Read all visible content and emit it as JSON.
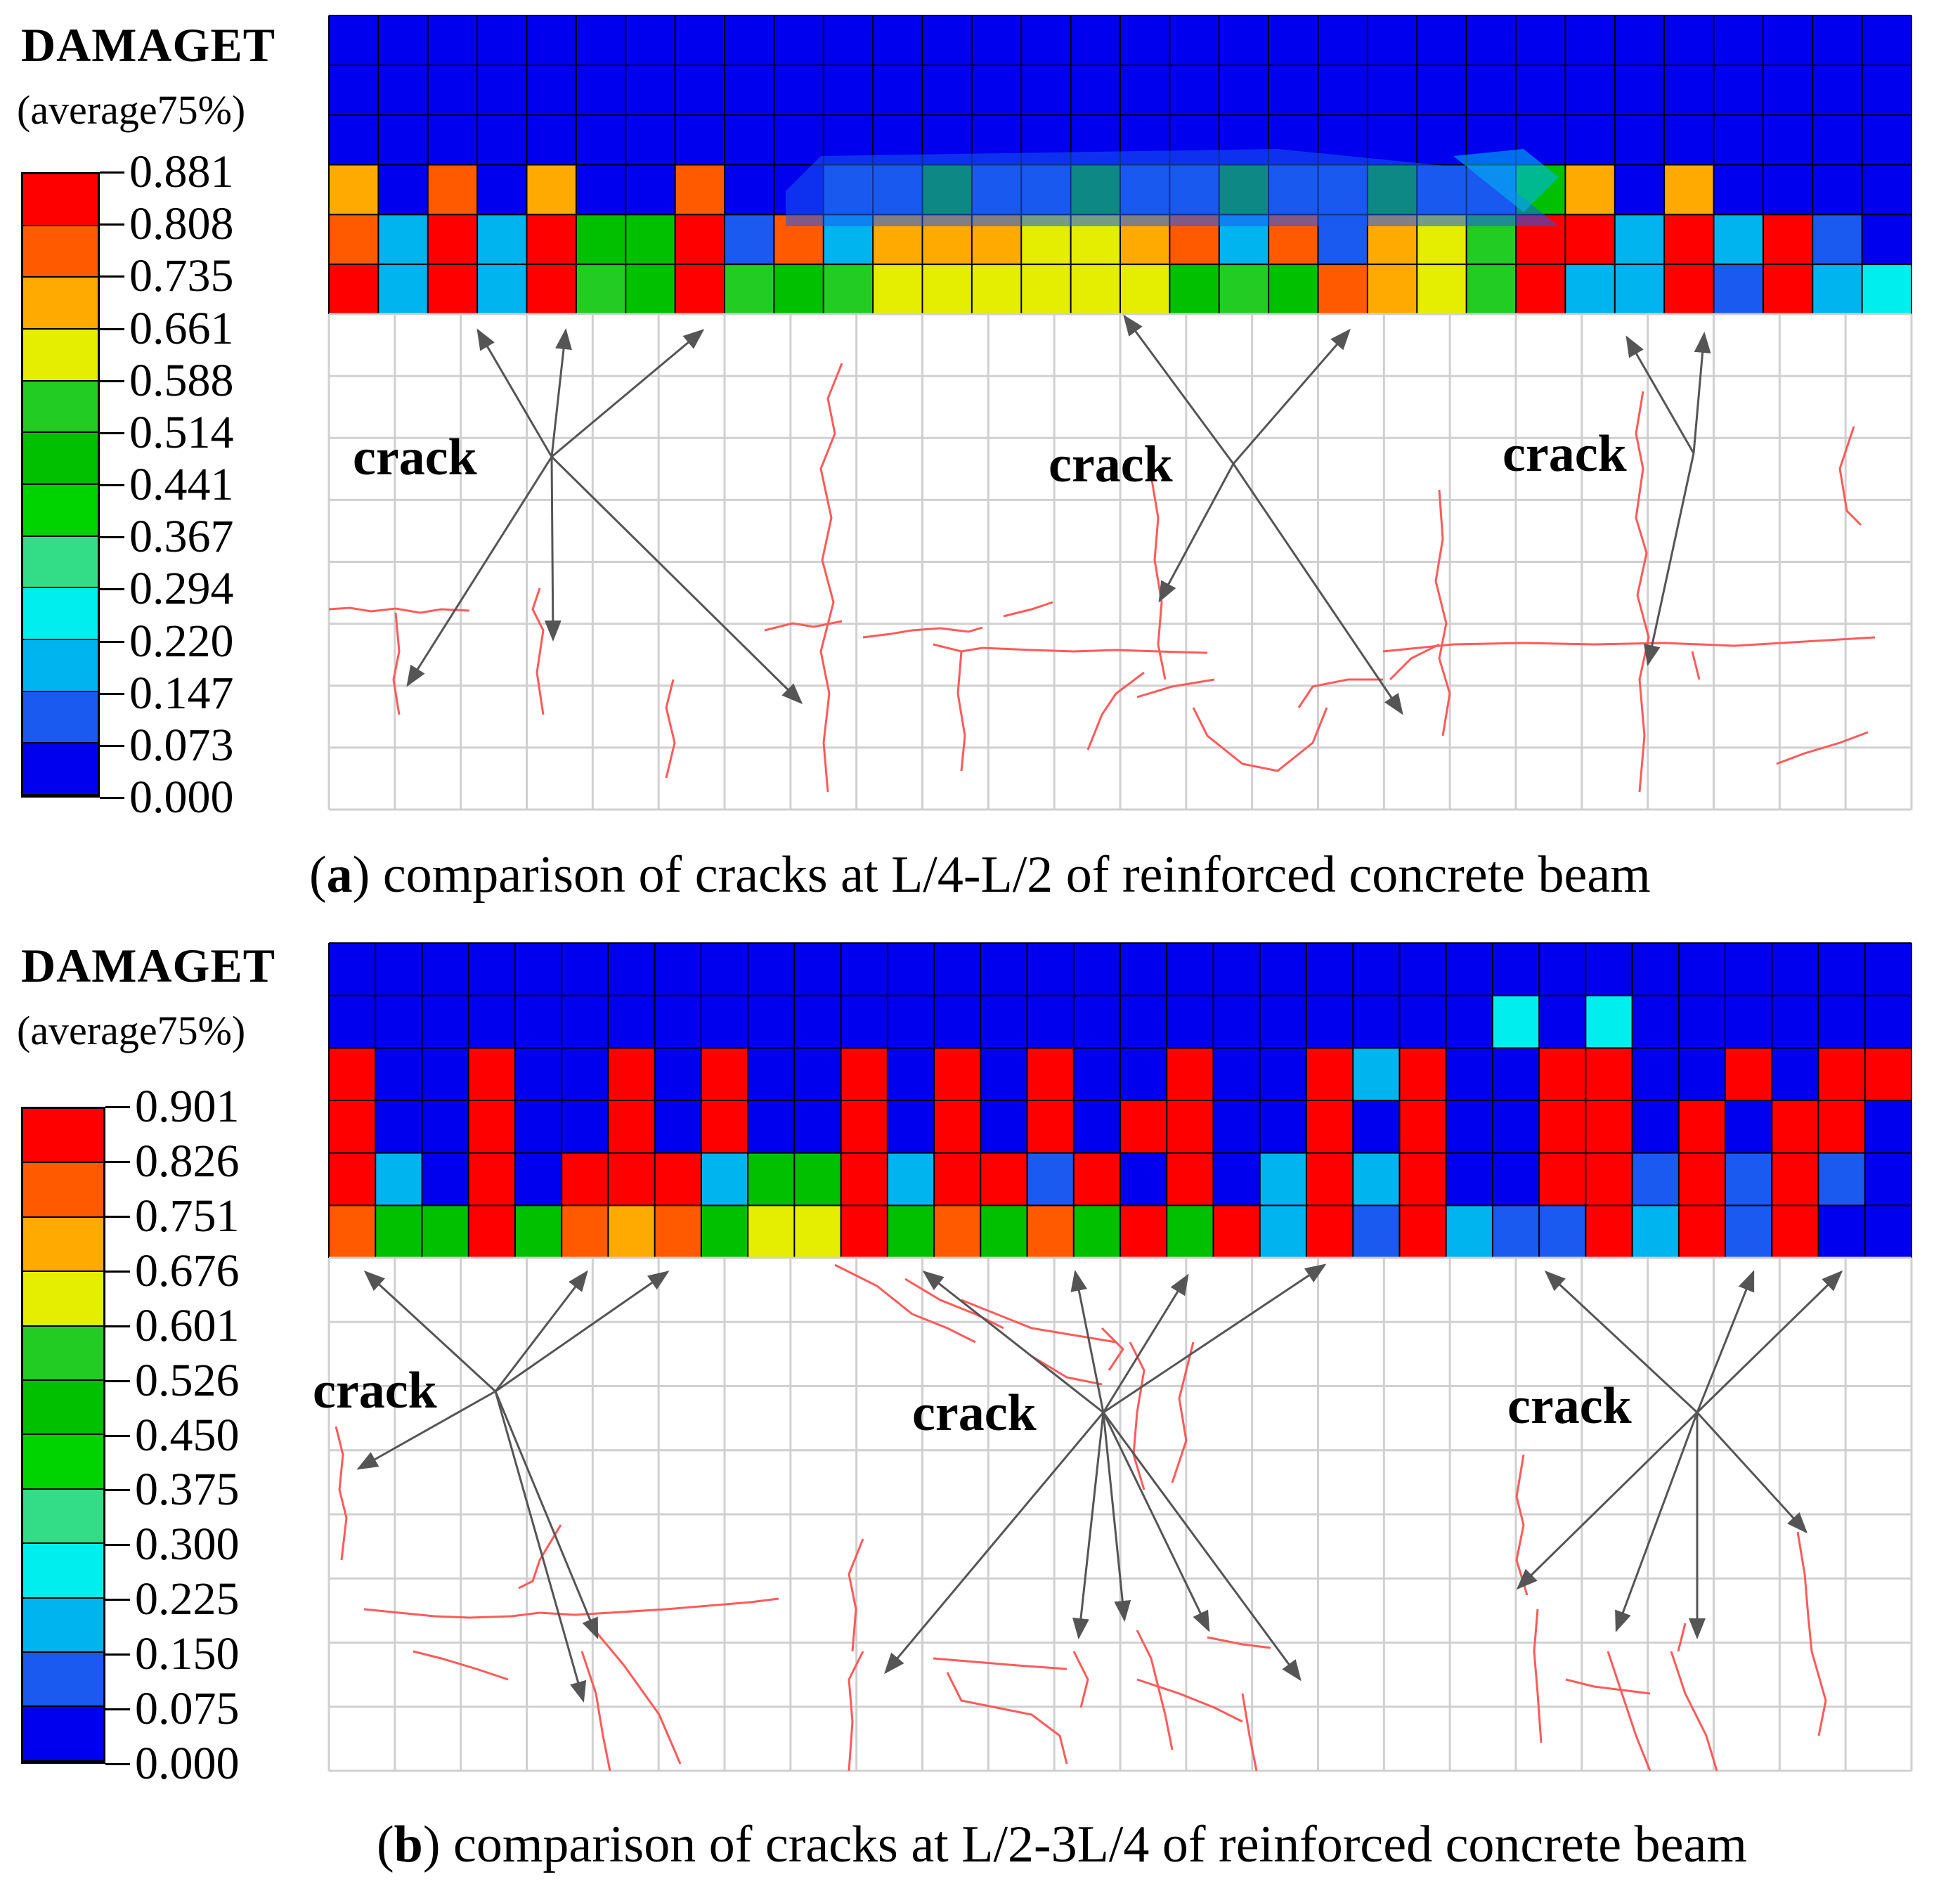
{
  "panels": [
    {
      "id": "a",
      "legend_title": "DAMAGET",
      "legend_subtitle": "(average75%)",
      "legend_values": [
        "0.881",
        "0.808",
        "0.735",
        "0.661",
        "0.588",
        "0.514",
        "0.441",
        "0.367",
        "0.294",
        "0.220",
        "0.147",
        "0.073",
        "0.000"
      ],
      "crack_labels": [
        "crack",
        "crack",
        "crack"
      ],
      "caption_letter": "a",
      "caption_text": " comparison of cracks at L/4-L/2 of reinforced concrete beam"
    },
    {
      "id": "b",
      "legend_title": "DAMAGET",
      "legend_subtitle": "(average75%)",
      "legend_values": [
        "0.901",
        "0.826",
        "0.751",
        "0.676",
        "0.601",
        "0.526",
        "0.450",
        "0.375",
        "0.300",
        "0.225",
        "0.150",
        "0.075",
        "0.000"
      ],
      "crack_labels": [
        "crack",
        "crack",
        "crack"
      ],
      "caption_letter": "b",
      "caption_text": " comparison of cracks at L/2-3L/4 of reinforced concrete beam"
    }
  ],
  "colors": {
    "scale": [
      "#ff0000",
      "#ff5a00",
      "#ffaa00",
      "#e6ee00",
      "#22cc22",
      "#00c000",
      "#00d400",
      "#33dd88",
      "#00eeee",
      "#00b4f0",
      "#1a5af0",
      "#0000ee"
    ],
    "crack_line": "#ff5a5a",
    "grid": "#d0d0d0",
    "mesh_line": "#000000",
    "arrow": "#555555"
  }
}
